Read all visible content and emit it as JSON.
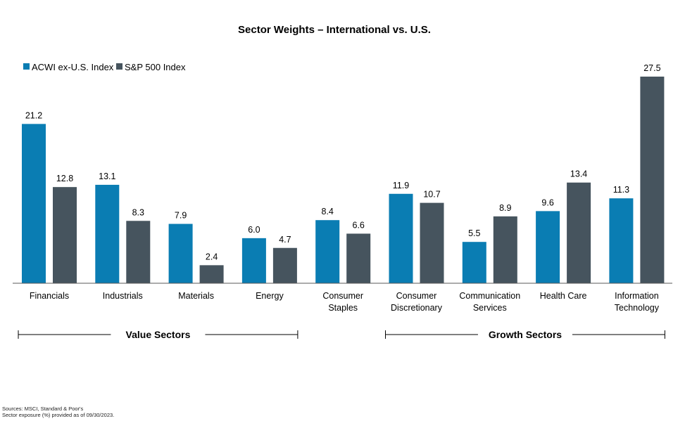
{
  "chart_data": {
    "type": "bar",
    "title": "Sector Weights – International vs. U.S.",
    "categories": [
      [
        "Financials"
      ],
      [
        "Industrials"
      ],
      [
        "Materials"
      ],
      [
        "Energy"
      ],
      [
        "Consumer",
        "Staples"
      ],
      [
        "Consumer",
        "Discretionary"
      ],
      [
        "Communication",
        "Services"
      ],
      [
        "Health Care"
      ],
      [
        "Information",
        "Technology"
      ]
    ],
    "series": [
      {
        "name": "ACWI ex-U.S. Index",
        "color": "#0a7db3",
        "values": [
          21.2,
          13.1,
          7.9,
          6.0,
          8.4,
          11.9,
          5.5,
          9.6,
          11.3
        ],
        "labels": [
          "21.2",
          "13.1",
          "7.9",
          "6.0",
          "8.4",
          "11.9",
          "5.5",
          "9.6",
          "11.3"
        ]
      },
      {
        "name": "S&P 500 Index",
        "color": "#46545e",
        "values": [
          12.8,
          8.3,
          2.4,
          4.7,
          6.6,
          10.7,
          8.9,
          13.4,
          27.5
        ],
        "labels": [
          "12.8",
          "8.3",
          "2.4",
          "4.7",
          "6.6",
          "10.7",
          "8.9",
          "13.4",
          "27.5"
        ]
      }
    ],
    "ylim": [
      0,
      27.5
    ],
    "legend_position": "top-left",
    "groups": [
      {
        "label": "Value Sectors",
        "from_category": 0,
        "to_category": 3
      },
      {
        "label": "Growth Sectors",
        "from_category": 5,
        "to_category": 8
      }
    ]
  },
  "footnote": {
    "line1": "Sources: MSCI, Standard & Poor's",
    "line2": "Sector exposure (%) provided as of 09/30/2023."
  }
}
